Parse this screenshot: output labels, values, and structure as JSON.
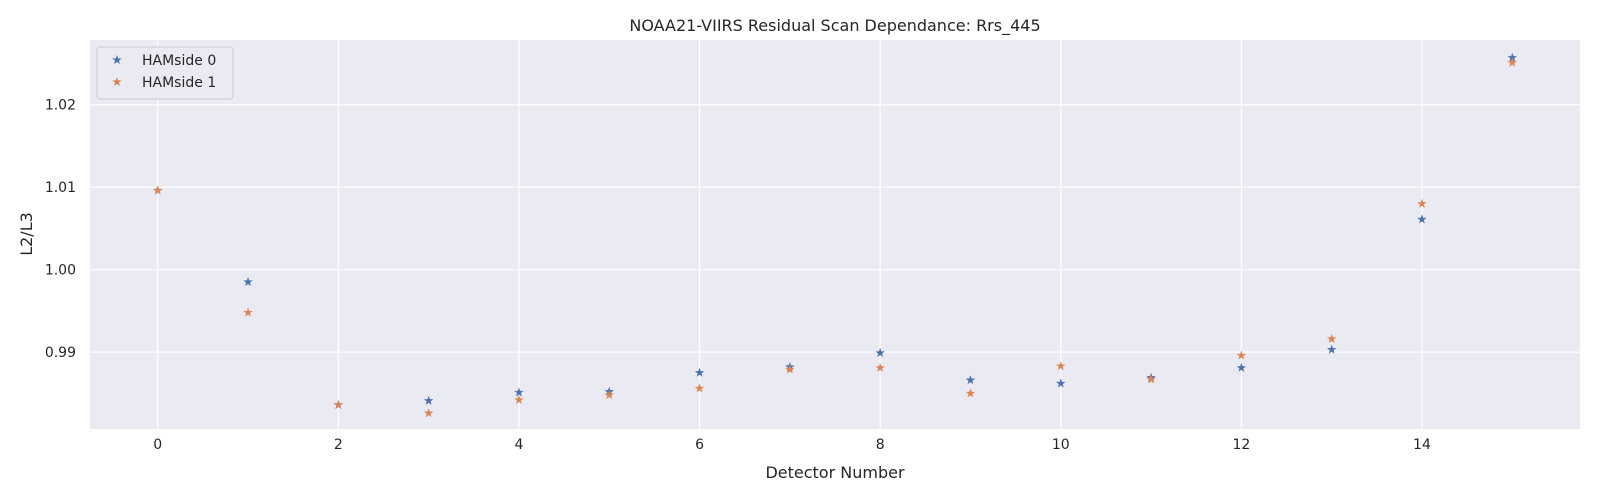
{
  "chart_data": {
    "type": "scatter",
    "title": "NOAA21-VIIRS Residual Scan Dependance: Rrs_445",
    "xlabel": "Detector Number",
    "ylabel": "L2/L3",
    "xlim": [
      -0.75,
      15.75
    ],
    "ylim": [
      0.98068,
      1.02785
    ],
    "x_ticks": [
      0,
      2,
      4,
      6,
      8,
      10,
      12,
      14
    ],
    "y_ticks": [
      0.99,
      1.0,
      1.01,
      1.02
    ],
    "y_tick_labels": [
      "0.99",
      "1.00",
      "1.01",
      "1.02"
    ],
    "grid": true,
    "legend_position": "top-left",
    "marker": "star",
    "x": [
      0,
      1,
      2,
      3,
      4,
      5,
      6,
      7,
      8,
      9,
      10,
      11,
      12,
      13,
      14,
      15
    ],
    "series": [
      {
        "name": "HAMside 0",
        "color": "#4c72b0",
        "values": [
          1.0096,
          0.9985,
          0.9836,
          0.9841,
          0.9851,
          0.9852,
          0.9875,
          0.9882,
          0.9899,
          0.9866,
          0.9862,
          0.9869,
          0.9881,
          0.9903,
          1.0061,
          1.0257
        ]
      },
      {
        "name": "HAMside 1",
        "color": "#dd8452",
        "values": [
          1.0096,
          0.9948,
          0.9836,
          0.9826,
          0.9842,
          0.9848,
          0.9856,
          0.9879,
          0.9881,
          0.985,
          0.9883,
          0.9867,
          0.9896,
          0.9916,
          1.008,
          1.0251
        ]
      }
    ]
  }
}
